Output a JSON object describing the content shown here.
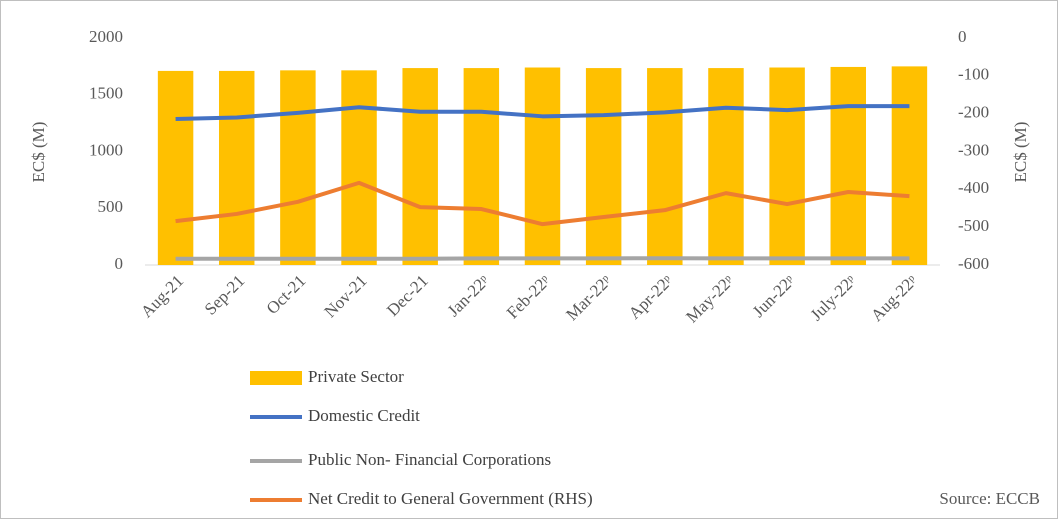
{
  "chart_data": {
    "type": "bar",
    "categories": [
      "Aug-21",
      "Sep-21",
      "Oct-21",
      "Nov-21",
      "Dec-21",
      "Jan-22ᵖ",
      "Feb-22ᵖ",
      "Mar-22ᵖ",
      "Apr-22ᵖ",
      "May-22ᵖ",
      "Jun-22ᵖ",
      "July-22ᵖ",
      "Aug-22ᵖ"
    ],
    "series": [
      {
        "name": "Private Sector",
        "type": "bar",
        "color": "#ffc000",
        "values": [
          1710,
          1710,
          1715,
          1715,
          1735,
          1735,
          1740,
          1735,
          1735,
          1735,
          1740,
          1745,
          1750
        ]
      },
      {
        "name": "Domestic Credit",
        "type": "line",
        "color": "#4472c4",
        "values": [
          1286,
          1300,
          1340,
          1390,
          1350,
          1350,
          1310,
          1320,
          1345,
          1385,
          1365,
          1400,
          1400
        ]
      },
      {
        "name": "Public Non- Financial Corporations",
        "type": "line",
        "color": "#a5a5a5",
        "values": [
          55,
          55,
          55,
          55,
          55,
          58,
          58,
          58,
          60,
          58,
          58,
          58,
          58
        ]
      },
      {
        "name": "Net Credit to General Government   (RHS)",
        "type": "line",
        "axis": "y2",
        "color": "#ed7d31",
        "values": [
          -484,
          -465,
          -433,
          -383,
          -447,
          -452,
          -492,
          -473,
          -455,
          -410,
          -439,
          -407,
          -418
        ]
      }
    ],
    "ylabel": "EC$ (M)",
    "y2label": "EC$ (M)",
    "ylim": [
      0,
      2000
    ],
    "yticks": [
      0,
      500,
      1000,
      1500,
      2000
    ],
    "y2lim": [
      -600,
      0
    ],
    "y2ticks": [
      -600,
      -500,
      -400,
      -300,
      -200,
      -100,
      0
    ],
    "source": "Source: ECCB"
  }
}
